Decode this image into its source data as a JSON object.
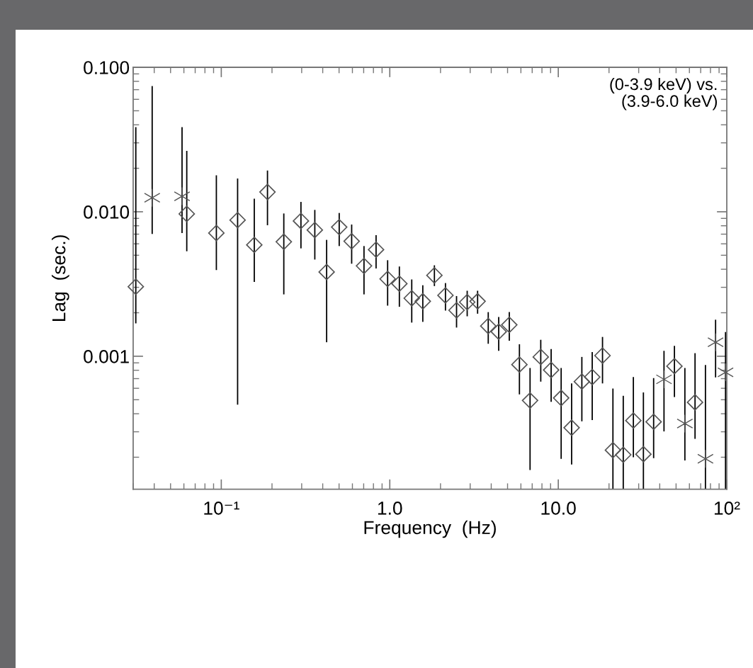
{
  "chart_data": {
    "type": "scatter",
    "xlabel": "Frequency  (Hz)",
    "ylabel": "Lag  (sec.)",
    "log": "xy",
    "grid": false,
    "legend": false,
    "xlim": [
      0.03,
      100
    ],
    "ylim": [
      0.00012,
      0.1
    ],
    "xticks": [
      {
        "value": 0.1,
        "label": "10⁻¹"
      },
      {
        "value": 1,
        "label": "1.0"
      },
      {
        "value": 10,
        "label": "10.0"
      },
      {
        "value": 100,
        "label": "10²"
      }
    ],
    "yticks": [
      {
        "value": 0.001,
        "label": "0.001"
      },
      {
        "value": 0.01,
        "label": "0.010"
      },
      {
        "value": 0.1,
        "label": "0.100"
      }
    ],
    "annotations": [
      "(0-3.9 keV) vs.\n(3.9-6.0 keV)"
    ],
    "series": [
      {
        "color": "#555555",
        "marker": "diamond",
        "x": [
          0.125,
          0.188,
          0.235,
          0.297,
          0.359,
          0.422,
          0.501,
          0.594,
          0.703,
          0.829,
          0.971,
          1.14,
          1.35,
          1.57,
          1.84,
          2.14,
          2.49,
          2.88,
          3.32,
          3.84,
          4.43,
          5.12,
          5.88,
          6.8,
          7.87,
          9.07,
          10.4,
          13.8,
          15.9,
          18.3,
          48.9
        ],
        "values": [
          0.00876,
          0.0137,
          0.0062,
          0.00864,
          0.00748,
          0.00383,
          0.00783,
          0.00625,
          0.00422,
          0.00547,
          0.00343,
          0.00318,
          0.00252,
          0.0024,
          0.00363,
          0.00264,
          0.00208,
          0.00237,
          0.0024,
          0.00162,
          0.00148,
          0.00165,
          0.000876,
          0.000494,
          0.000989,
          0.000803,
          0.000514,
          0.000668,
          0.000718,
          0.00101,
          0.000854
        ],
        "errors": [
          [
            0.000462,
            0.017
          ],
          [
            0.00807,
            0.0193
          ],
          [
            0.00268,
            0.00973
          ],
          [
            0.00558,
            0.0117
          ],
          [
            0.00467,
            0.0103
          ],
          [
            0.00125,
            0.00639
          ],
          [
            0.00579,
            0.00981
          ],
          [
            0.00437,
            0.00816
          ],
          [
            0.00268,
            0.00579
          ],
          [
            0.00405,
            0.00689
          ],
          [
            0.00224,
            0.00462
          ],
          [
            0.0022,
            0.00418
          ],
          [
            0.00171,
            0.0034
          ],
          [
            0.00173,
            0.0031
          ],
          [
            0.00306,
            0.00426
          ],
          [
            0.00207,
            0.00321
          ],
          [
            0.00158,
            0.00261
          ],
          [
            0.00189,
            0.00284
          ],
          [
            0.00197,
            0.00284
          ],
          [
            0.00122,
            0.00202
          ],
          [
            0.00109,
            0.00187
          ],
          [
            0.00128,
            0.00202
          ],
          [
            0.000544,
            0.00121
          ],
          [
            0.000163,
            0.000828
          ],
          [
            0.000668,
            0.0013
          ],
          [
            0.000483,
            0.00112
          ],
          [
            0.000195,
            0.000828
          ],
          [
            0.000355,
            0.000989
          ],
          [
            0.000362,
            0.00107
          ],
          [
            0.000648,
            0.00136
          ],
          [
            0.000522,
            0.00118
          ]
        ]
      },
      {
        "color": "#555555",
        "marker": "diamond",
        "x": [
          0.0311,
          0.0624,
          0.0935,
          0.157,
          12.0,
          21.1,
          24.3,
          27.9,
          32.0,
          36.8,
          64.8
        ],
        "values": [
          0.00303,
          0.00967,
          0.00713,
          0.0059,
          0.00032,
          0.000224,
          0.000208,
          0.000359,
          0.00021,
          0.000352,
          0.00048
        ],
        "errors": [
          [
            0.00169,
            0.0385
          ],
          [
            0.00533,
            0.0264
          ],
          [
            0.00395,
            0.0179
          ],
          [
            0.00327,
            0.0123
          ],
          [
            0.000178,
            0.000648
          ],
          [
            0.00012,
            0.000597
          ],
          [
            0.00012,
            0.000533
          ],
          [
            0.0002,
            0.000718
          ],
          [
            0.00012,
            0.000562
          ],
          [
            0.000197,
            0.000705
          ],
          [
            0.000268,
            0.00105
          ]
        ]
      },
      {
        "color": "#555555",
        "marker": "cross",
        "x": [
          42.4,
          85.8,
          98.3
        ],
        "values": [
          0.000692,
          0.00125,
          0.000774
        ],
        "errors": [
          [
            0.000302,
            0.00109
          ],
          [
            0.000713,
            0.00179
          ],
          [
            0.00012,
            0.00147
          ]
        ]
      },
      {
        "color": "#555555",
        "marker": "cross",
        "x": [
          0.0389,
          0.0585,
          56.4,
          74.7
        ],
        "values": [
          0.0125,
          0.0128,
          0.000342,
          0.000195
        ],
        "errors": [
          [
            0.00702,
            0.0742
          ],
          [
            0.00713,
            0.0385
          ],
          [
            0.00019,
            0.000828
          ],
          [
            0.00012,
            0.000869
          ]
        ]
      }
    ]
  }
}
